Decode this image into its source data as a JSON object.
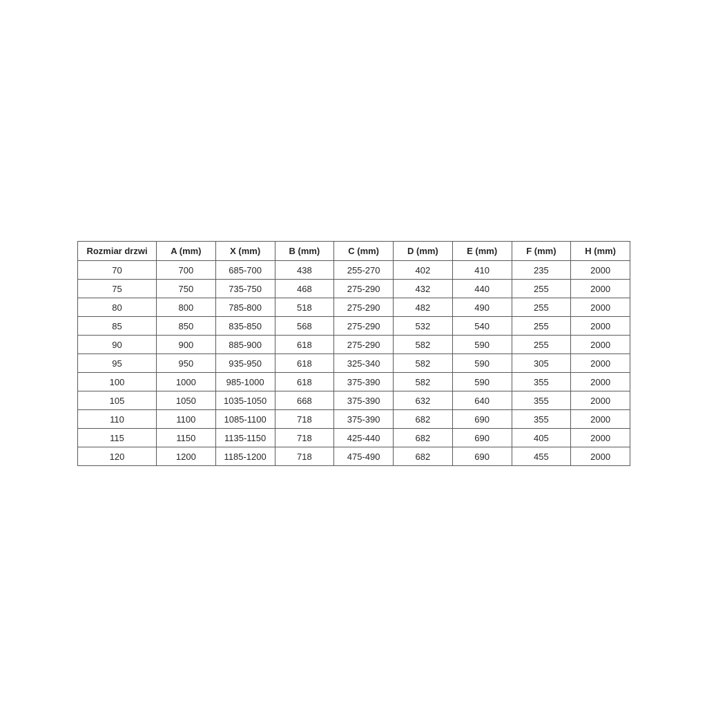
{
  "chart_data": {
    "type": "table",
    "title": "",
    "columns": [
      "Rozmiar drzwi",
      "A (mm)",
      "X (mm)",
      "B (mm)",
      "C (mm)",
      "D (mm)",
      "E (mm)",
      "F (mm)",
      "H (mm)"
    ],
    "rows": [
      [
        "70",
        "700",
        "685-700",
        "438",
        "255-270",
        "402",
        "410",
        "235",
        "2000"
      ],
      [
        "75",
        "750",
        "735-750",
        "468",
        "275-290",
        "432",
        "440",
        "255",
        "2000"
      ],
      [
        "80",
        "800",
        "785-800",
        "518",
        "275-290",
        "482",
        "490",
        "255",
        "2000"
      ],
      [
        "85",
        "850",
        "835-850",
        "568",
        "275-290",
        "532",
        "540",
        "255",
        "2000"
      ],
      [
        "90",
        "900",
        "885-900",
        "618",
        "275-290",
        "582",
        "590",
        "255",
        "2000"
      ],
      [
        "95",
        "950",
        "935-950",
        "618",
        "325-340",
        "582",
        "590",
        "305",
        "2000"
      ],
      [
        "100",
        "1000",
        "985-1000",
        "618",
        "375-390",
        "582",
        "590",
        "355",
        "2000"
      ],
      [
        "105",
        "1050",
        "1035-1050",
        "668",
        "375-390",
        "632",
        "640",
        "355",
        "2000"
      ],
      [
        "110",
        "1100",
        "1085-1100",
        "718",
        "375-390",
        "682",
        "690",
        "355",
        "2000"
      ],
      [
        "115",
        "1150",
        "1135-1150",
        "718",
        "425-440",
        "682",
        "690",
        "405",
        "2000"
      ],
      [
        "120",
        "1200",
        "1185-1200",
        "718",
        "475-490",
        "682",
        "690",
        "455",
        "2000"
      ]
    ],
    "colors": {
      "background": "#ffffff",
      "border_outer": "#444444",
      "border_inner": "#595959",
      "text": "#262626"
    }
  }
}
